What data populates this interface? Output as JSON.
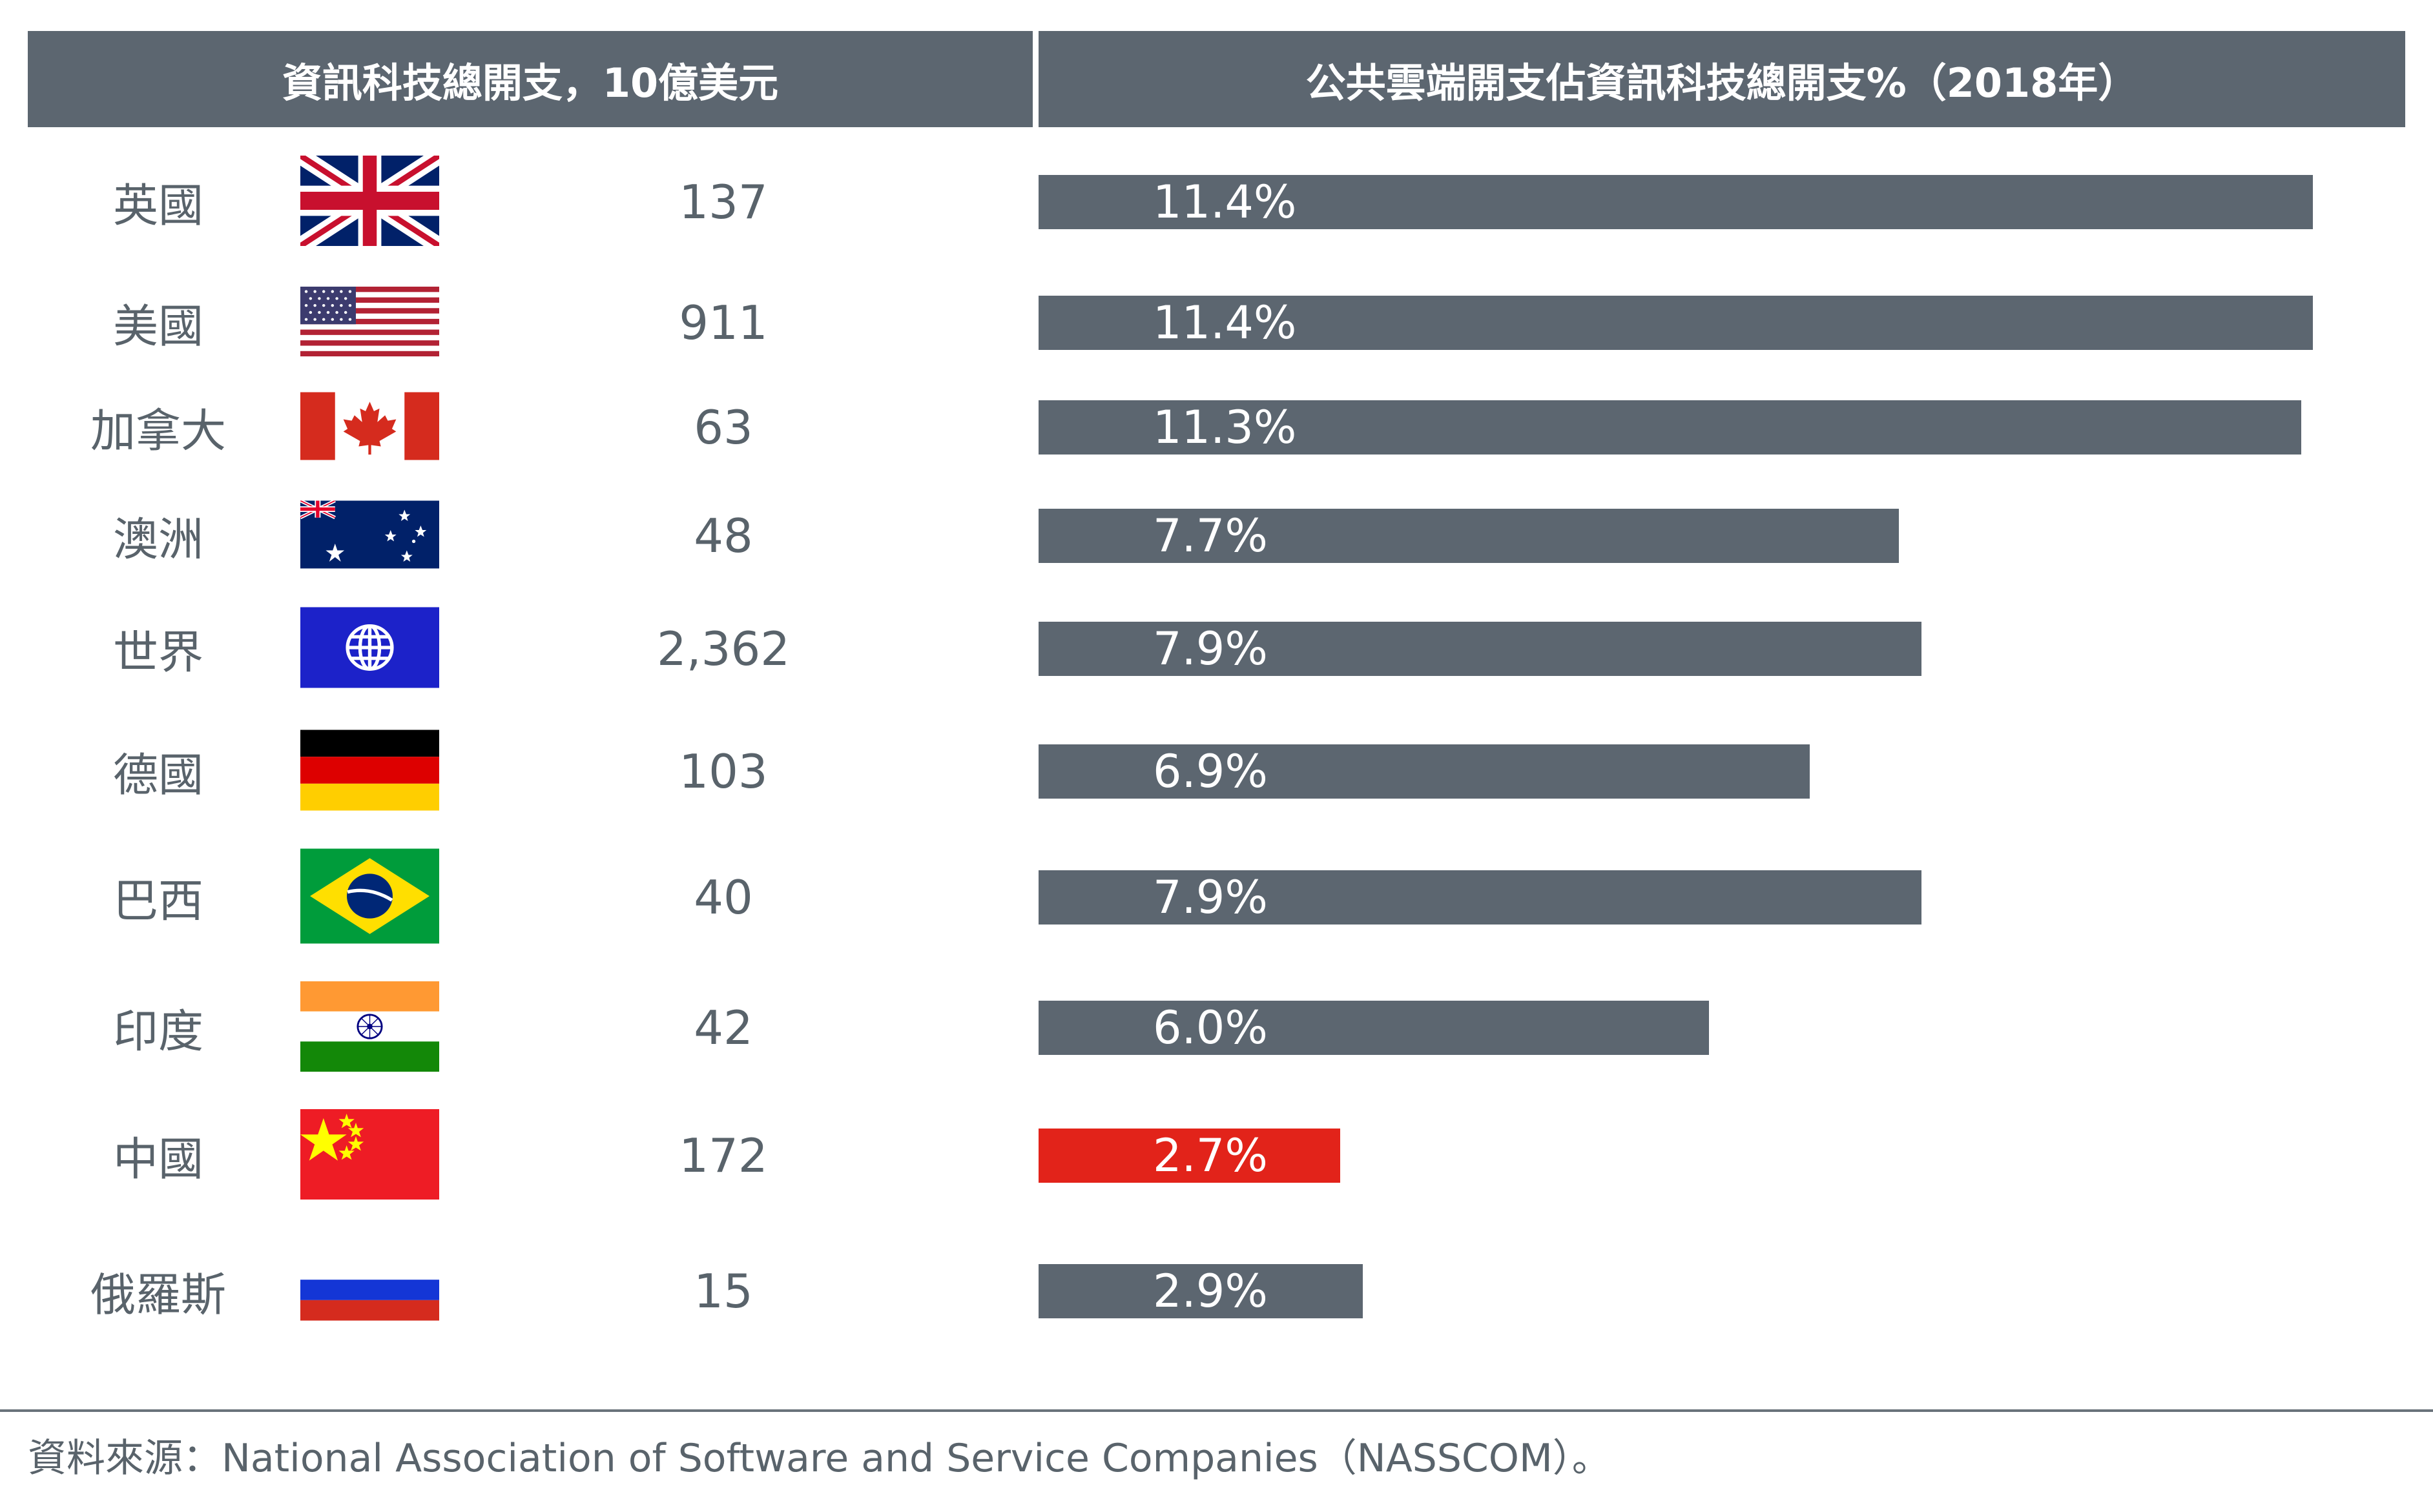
{
  "headers": {
    "left": "資訊科技總開支，10億美元",
    "right": "公共雲端開支佔資訊科技總開支%（2018年）"
  },
  "colors": {
    "header_bg": "#5c6670",
    "bar_default": "#5c6670",
    "bar_highlight": "#e2231a",
    "text": "#59636b"
  },
  "chart_data": {
    "type": "bar",
    "orientation": "horizontal",
    "categories": [
      "英國",
      "美國",
      "加拿大",
      "澳洲",
      "世界",
      "德國",
      "巴西",
      "印度",
      "中國",
      "俄羅斯"
    ],
    "it_spend_labels": [
      "137",
      "911",
      "63",
      "48",
      "2,362",
      "103",
      "40",
      "42",
      "172",
      "15"
    ],
    "series": [
      {
        "values": [
          11.4,
          11.4,
          11.3,
          7.7,
          7.9,
          6.9,
          7.9,
          6.0,
          2.7,
          2.9
        ],
        "labels": [
          "11.4%",
          "11.4%",
          "11.3%",
          "7.7%",
          "7.9%",
          "6.9%",
          "7.9%",
          "6.0%",
          "2.7%",
          "2.9%"
        ]
      }
    ],
    "highlight": "中國",
    "flags": [
      "uk-flag",
      "usa-flag",
      "canada-flag",
      "australia-flag",
      "world-globe-flag",
      "germany-flag",
      "brazil-flag",
      "india-flag",
      "china-flag",
      "russia-flag"
    ],
    "xlim": [
      0,
      11.8
    ],
    "grid": false
  },
  "footer": {
    "source": "資料來源：National Association of Software and Service Companies（NASSCOM）。"
  }
}
